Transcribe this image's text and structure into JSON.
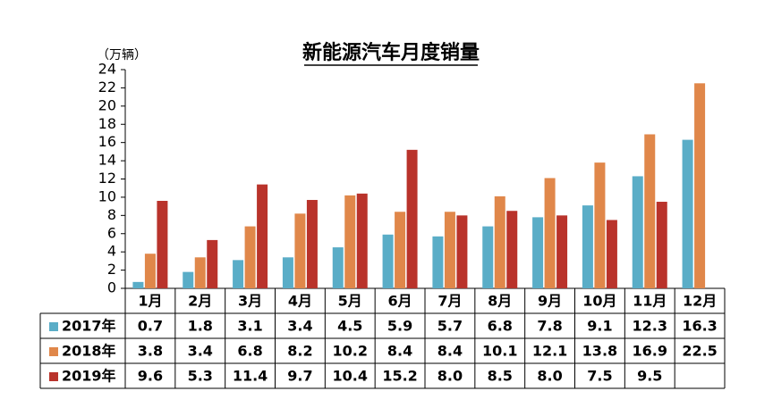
{
  "chart_data": {
    "type": "bar",
    "title": "新能源汽车月度销量",
    "y_unit": "（万辆）",
    "categories": [
      "1月",
      "2月",
      "3月",
      "4月",
      "5月",
      "6月",
      "7月",
      "8月",
      "9月",
      "10月",
      "11月",
      "12月"
    ],
    "series": [
      {
        "name": "2017年",
        "color": "#5aadc7",
        "values": [
          0.7,
          1.8,
          3.1,
          3.4,
          4.5,
          5.9,
          5.7,
          6.8,
          7.8,
          9.1,
          12.3,
          16.3
        ]
      },
      {
        "name": "2018年",
        "color": "#e0874a",
        "values": [
          3.8,
          3.4,
          6.8,
          8.2,
          10.2,
          8.4,
          8.4,
          10.1,
          12.1,
          13.8,
          16.9,
          22.5
        ]
      },
      {
        "name": "2019年",
        "color": "#b9332b",
        "values": [
          9.6,
          5.3,
          11.4,
          9.7,
          10.4,
          15.2,
          8.0,
          8.5,
          8.0,
          7.5,
          9.5,
          null
        ],
        "value_labels": [
          "9.6",
          "5.3",
          "11.4",
          "9.7",
          "10.4",
          "15.2",
          "8.0",
          "8.5",
          "8.0",
          "7.5",
          "9.5",
          null
        ]
      }
    ],
    "ylim": [
      0,
      24
    ],
    "yticks": [
      0,
      2,
      4,
      6,
      8,
      10,
      12,
      14,
      16,
      18,
      20,
      22,
      24
    ],
    "grid": false
  }
}
